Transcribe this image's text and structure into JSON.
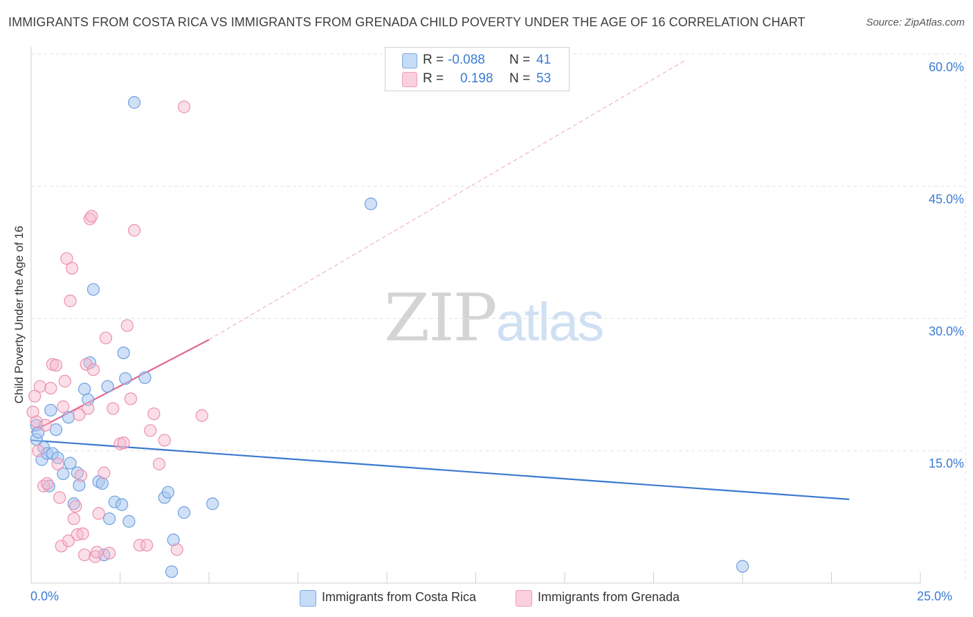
{
  "title": "IMMIGRANTS FROM COSTA RICA VS IMMIGRANTS FROM GRENADA CHILD POVERTY UNDER THE AGE OF 16 CORRELATION CHART",
  "source": "Source: ZipAtlas.com",
  "watermark": {
    "zip": "ZIP",
    "atlas": "atlas"
  },
  "legend": {
    "rows": [
      {
        "r_label": "R =",
        "r_value": "-0.088",
        "n_label": "N =",
        "n_value": "41"
      },
      {
        "r_label": "R =",
        "r_value": "0.198",
        "n_label": "N =",
        "n_value": "53"
      }
    ]
  },
  "colors": {
    "series1_fill": "#a9c8f0",
    "series1_stroke": "#6d9fe0",
    "series1_line": "#3a78d0",
    "series2_fill": "#f7b8cc",
    "series2_stroke": "#ec8fae",
    "series2_line": "#e2678f",
    "tick_text": "#3a7bd5",
    "grid": "#e2e2e2"
  },
  "chart_data": {
    "type": "scatter",
    "title": "IMMIGRANTS FROM COSTA RICA VS IMMIGRANTS FROM GRENADA CHILD POVERTY UNDER THE AGE OF 16 CORRELATION CHART",
    "xlabel": "",
    "ylabel": "Child Poverty Under the Age of 16",
    "xlim": [
      0,
      25
    ],
    "ylim": [
      0,
      60
    ],
    "x_tick_labels": [
      "0.0%",
      "25.0%"
    ],
    "y_ticks": [
      15,
      30,
      45,
      60
    ],
    "y_tick_labels": [
      "15.0%",
      "30.0%",
      "45.0%",
      "60.0%"
    ],
    "grid": true,
    "legend_position": "top-center",
    "series": [
      {
        "name": "Immigrants from Costa Rica",
        "r": -0.088,
        "n": 41,
        "trend": {
          "x": [
            0.0,
            23.0
          ],
          "y": [
            16.2,
            9.5
          ]
        },
        "points": [
          [
            0.15,
            17.9
          ],
          [
            0.15,
            16.3
          ],
          [
            0.2,
            17.1
          ],
          [
            0.3,
            14.0
          ],
          [
            0.35,
            15.4
          ],
          [
            0.45,
            14.7
          ],
          [
            0.5,
            11.0
          ],
          [
            0.55,
            19.6
          ],
          [
            0.6,
            14.7
          ],
          [
            0.7,
            17.4
          ],
          [
            0.75,
            14.2
          ],
          [
            0.9,
            12.4
          ],
          [
            1.05,
            18.8
          ],
          [
            1.1,
            13.6
          ],
          [
            1.2,
            9.0
          ],
          [
            1.3,
            12.5
          ],
          [
            1.35,
            11.1
          ],
          [
            1.5,
            22.0
          ],
          [
            1.6,
            20.8
          ],
          [
            1.65,
            25.0
          ],
          [
            1.75,
            33.3
          ],
          [
            1.9,
            11.5
          ],
          [
            2.0,
            11.3
          ],
          [
            2.05,
            3.2
          ],
          [
            2.15,
            22.3
          ],
          [
            2.2,
            7.3
          ],
          [
            2.35,
            9.2
          ],
          [
            2.55,
            8.9
          ],
          [
            2.6,
            26.1
          ],
          [
            2.65,
            23.2
          ],
          [
            2.75,
            7.0
          ],
          [
            2.9,
            54.5
          ],
          [
            3.2,
            23.3
          ],
          [
            3.75,
            9.7
          ],
          [
            3.85,
            10.3
          ],
          [
            3.95,
            1.3
          ],
          [
            4.0,
            4.9
          ],
          [
            4.3,
            8.0
          ],
          [
            5.1,
            9.0
          ],
          [
            9.55,
            43.0
          ],
          [
            20.0,
            1.9
          ]
        ]
      },
      {
        "name": "Immigrants from Grenada",
        "r": 0.198,
        "n": 53,
        "trend": {
          "x": [
            0.0,
            5.0
          ],
          "y": [
            17.1,
            27.6
          ]
        },
        "trend_extension": {
          "x": [
            5.0,
            18.4
          ],
          "y": [
            27.6,
            59.3
          ]
        },
        "points": [
          [
            0.05,
            19.4
          ],
          [
            0.1,
            21.2
          ],
          [
            0.15,
            18.3
          ],
          [
            0.2,
            15.0
          ],
          [
            0.25,
            22.3
          ],
          [
            0.35,
            11.0
          ],
          [
            0.4,
            17.9
          ],
          [
            0.45,
            11.3
          ],
          [
            0.55,
            22.1
          ],
          [
            0.6,
            24.8
          ],
          [
            0.7,
            24.7
          ],
          [
            0.75,
            13.5
          ],
          [
            0.8,
            9.7
          ],
          [
            0.85,
            4.2
          ],
          [
            0.9,
            20.0
          ],
          [
            0.95,
            22.9
          ],
          [
            1.0,
            36.8
          ],
          [
            1.05,
            4.8
          ],
          [
            1.1,
            32.0
          ],
          [
            1.15,
            35.7
          ],
          [
            1.2,
            7.3
          ],
          [
            1.25,
            8.7
          ],
          [
            1.3,
            5.5
          ],
          [
            1.35,
            19.1
          ],
          [
            1.4,
            12.2
          ],
          [
            1.45,
            5.6
          ],
          [
            1.5,
            3.2
          ],
          [
            1.55,
            24.8
          ],
          [
            1.6,
            19.8
          ],
          [
            1.65,
            41.3
          ],
          [
            1.7,
            41.6
          ],
          [
            1.75,
            24.2
          ],
          [
            1.8,
            3.0
          ],
          [
            1.85,
            3.5
          ],
          [
            1.9,
            7.9
          ],
          [
            2.05,
            12.5
          ],
          [
            2.1,
            27.8
          ],
          [
            2.2,
            3.4
          ],
          [
            2.3,
            19.8
          ],
          [
            2.5,
            15.8
          ],
          [
            2.6,
            15.9
          ],
          [
            2.7,
            29.2
          ],
          [
            2.8,
            20.9
          ],
          [
            2.9,
            40.0
          ],
          [
            3.05,
            4.3
          ],
          [
            3.25,
            4.3
          ],
          [
            3.35,
            17.3
          ],
          [
            3.45,
            19.2
          ],
          [
            3.6,
            13.5
          ],
          [
            3.75,
            16.2
          ],
          [
            4.1,
            3.8
          ],
          [
            4.3,
            54.0
          ],
          [
            4.8,
            19.0
          ]
        ]
      }
    ]
  }
}
